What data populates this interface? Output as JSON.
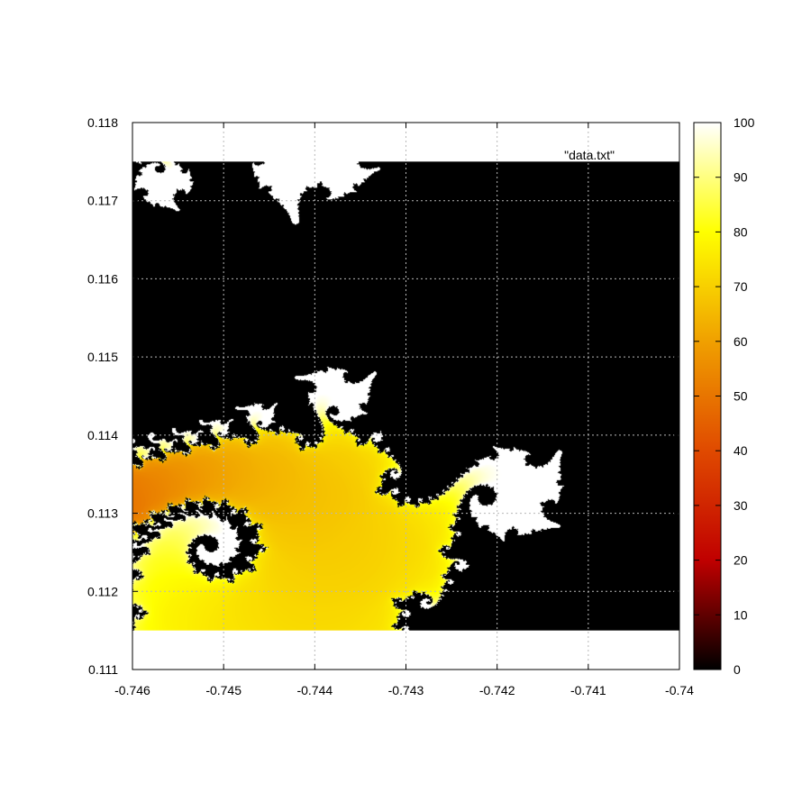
{
  "chart_data": {
    "type": "heatmap",
    "title": "",
    "xlabel": "",
    "ylabel": "",
    "xlim": [
      -0.746,
      -0.74
    ],
    "ylim": [
      0.111,
      0.118
    ],
    "data_extent": {
      "x": [
        -0.746,
        -0.74
      ],
      "y": [
        0.1115,
        0.1175
      ]
    },
    "x_ticks": [
      "-0.746",
      "-0.745",
      "-0.744",
      "-0.743",
      "-0.742",
      "-0.741",
      "-0.74"
    ],
    "y_ticks": [
      "0.111",
      "0.112",
      "0.113",
      "0.114",
      "0.115",
      "0.116",
      "0.117",
      "0.118"
    ],
    "grid": true,
    "legend": {
      "entries": [
        "\"data.txt\""
      ],
      "placement": "top-right"
    },
    "colorbar": {
      "range": [
        0,
        100
      ],
      "ticks": [
        "0",
        "10",
        "20",
        "30",
        "40",
        "50",
        "60",
        "70",
        "80",
        "90",
        "100"
      ],
      "palette": "black-red-orange-yellow-white"
    },
    "field": {
      "description": "Mandelbrot escape-time iteration count (seahorse valley detail)",
      "max_value": 100,
      "interior_value": 0
    }
  },
  "colors": {
    "palette_stops": [
      [
        0,
        "#000000"
      ],
      [
        20,
        "#c00000"
      ],
      [
        40,
        "#e04a00"
      ],
      [
        60,
        "#f0a000"
      ],
      [
        80,
        "#ffff00"
      ],
      [
        100,
        "#ffffff"
      ]
    ],
    "grid": "#b8b8b8",
    "axes": "#000000"
  }
}
